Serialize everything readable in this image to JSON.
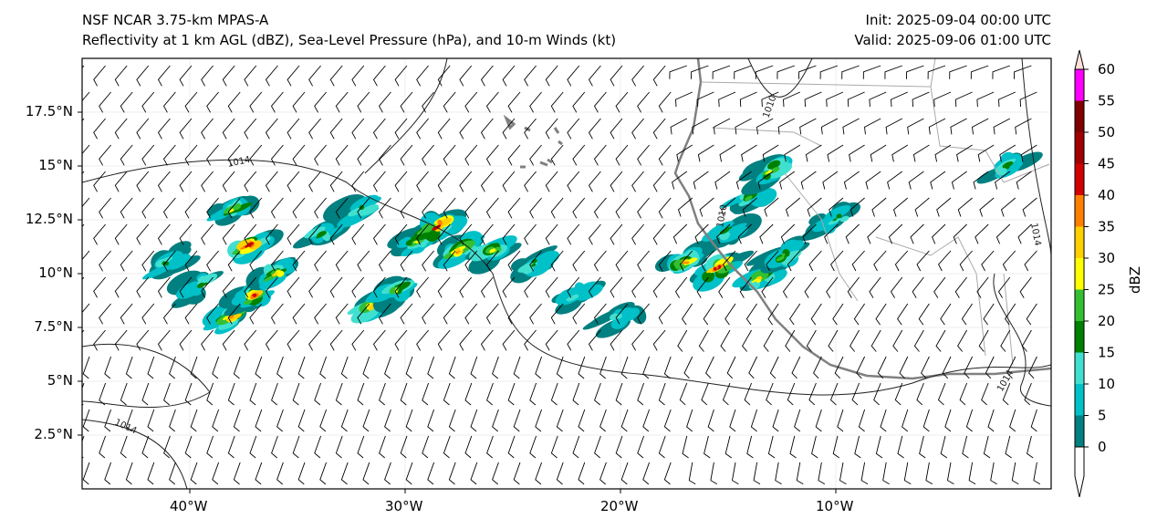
{
  "title": {
    "line1": "NSF NCAR 3.75-km MPAS-A",
    "line2": "Reflectivity at 1 km AGL (dBZ), Sea-Level Pressure (hPa), and 10-m Winds (kt)",
    "init": "Init: 2025-09-04 00:00 UTC",
    "valid": "Valid: 2025-09-06 01:00 UTC"
  },
  "chart_data": {
    "type": "heatmap",
    "extent": {
      "lon": [
        -45,
        0
      ],
      "lat": [
        0,
        20
      ]
    },
    "x_ticks": [
      {
        "lon": -40,
        "label": "40°W"
      },
      {
        "lon": -30,
        "label": "30°W"
      },
      {
        "lon": -20,
        "label": "20°W"
      },
      {
        "lon": -10,
        "label": "10°W"
      }
    ],
    "y_ticks": [
      {
        "lat": 17.5,
        "label": "17.5°N"
      },
      {
        "lat": 15,
        "label": "15°N"
      },
      {
        "lat": 12.5,
        "label": "12.5°N"
      },
      {
        "lat": 10,
        "label": "10°N"
      },
      {
        "lat": 7.5,
        "label": "7.5°N"
      },
      {
        "lat": 5,
        "label": "5°N"
      },
      {
        "lat": 2.5,
        "label": "2.5°N"
      }
    ],
    "contour_labels": [
      "1014",
      "1010",
      "1010",
      "1014",
      "1014",
      "1014"
    ],
    "colorbar": {
      "label": "dBZ",
      "levels": [
        "0",
        "5",
        "10",
        "15",
        "20",
        "25",
        "30",
        "35",
        "40",
        "45",
        "50",
        "55",
        "60"
      ],
      "colors": [
        "#008080",
        "#00c0c8",
        "#40e0d0",
        "#008000",
        "#32c032",
        "#ffff00",
        "#ffd000",
        "#ff8000",
        "#d00000",
        "#a00000",
        "#800000",
        "#ff00ff",
        "#ffe0d8"
      ]
    },
    "reflectivity_cells": [
      [
        -38,
        8.0,
        35
      ],
      [
        -37,
        9.0,
        40
      ],
      [
        -36,
        10.0,
        30
      ],
      [
        -37.2,
        11.3,
        45
      ],
      [
        -38,
        13,
        25
      ],
      [
        -39.5,
        9.5,
        15
      ],
      [
        -41,
        10.5,
        15
      ],
      [
        -31.5,
        8.5,
        35
      ],
      [
        -30.5,
        9.2,
        25
      ],
      [
        -29.5,
        11.5,
        25
      ],
      [
        -28.5,
        12.2,
        45
      ],
      [
        -27.5,
        11,
        35
      ],
      [
        -26,
        11,
        25
      ],
      [
        -24,
        10.5,
        15
      ],
      [
        -22,
        9,
        10
      ],
      [
        -20,
        8,
        10
      ],
      [
        -17,
        10.5,
        35
      ],
      [
        -15.5,
        10.2,
        45
      ],
      [
        -13.5,
        9.8,
        30
      ],
      [
        -12.5,
        10.8,
        20
      ],
      [
        -15,
        12,
        15
      ],
      [
        -14,
        13.5,
        20
      ],
      [
        -13,
        14.8,
        25
      ],
      [
        -10,
        12.5,
        15
      ],
      [
        -2,
        15,
        15
      ],
      [
        -34,
        11.8,
        15
      ],
      [
        -32,
        13,
        15
      ]
    ]
  }
}
